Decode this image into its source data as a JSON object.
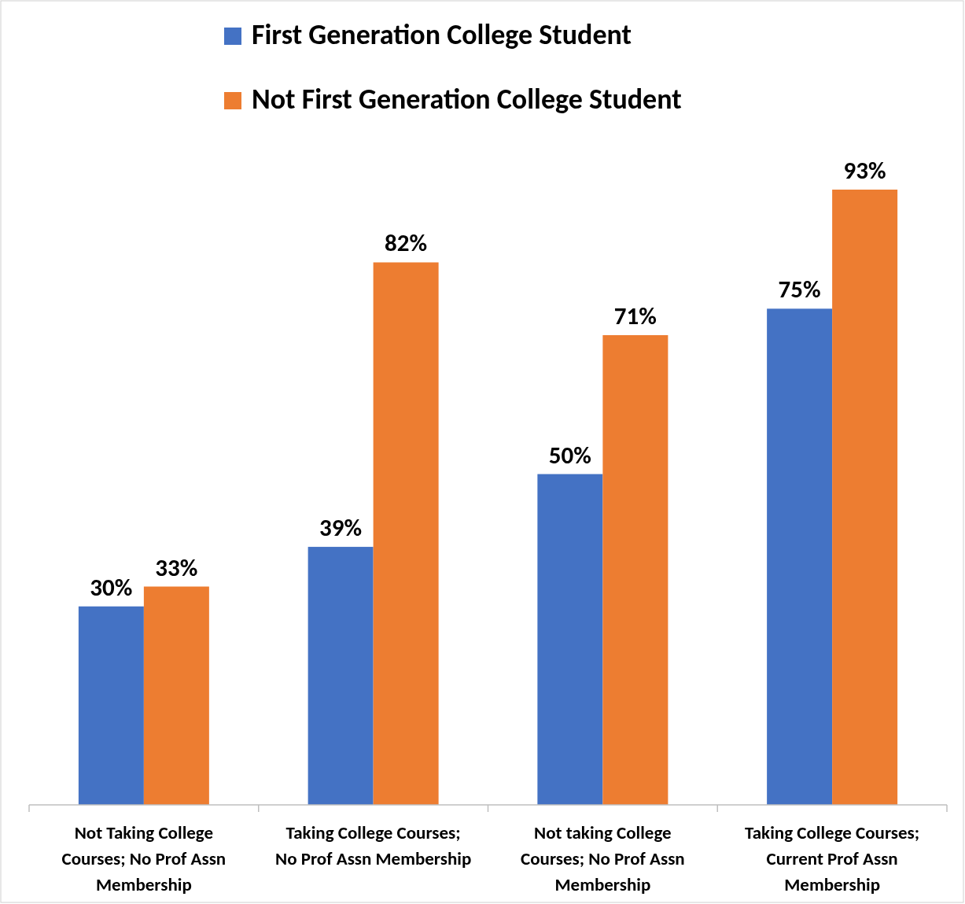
{
  "chart_data": {
    "type": "bar",
    "categories": [
      "Not Taking College Courses; No Prof Assn Membership",
      "Taking College Courses; No Prof Assn Membership",
      "Not taking College Courses; No Prof Assn Membership",
      "Taking College Courses; Current Prof Assn Membership"
    ],
    "series": [
      {
        "name": "First Generation College Student",
        "color": "#4472c4",
        "values": [
          30,
          39,
          50,
          75
        ],
        "value_labels": [
          "30%",
          "39%",
          "50%",
          "75%"
        ]
      },
      {
        "name": "Not First Generation College Student",
        "color": "#ed7d31",
        "values": [
          33,
          82,
          71,
          93
        ],
        "value_labels": [
          "33%",
          "82%",
          "71%",
          "93%"
        ]
      }
    ],
    "legend": "top"
  }
}
